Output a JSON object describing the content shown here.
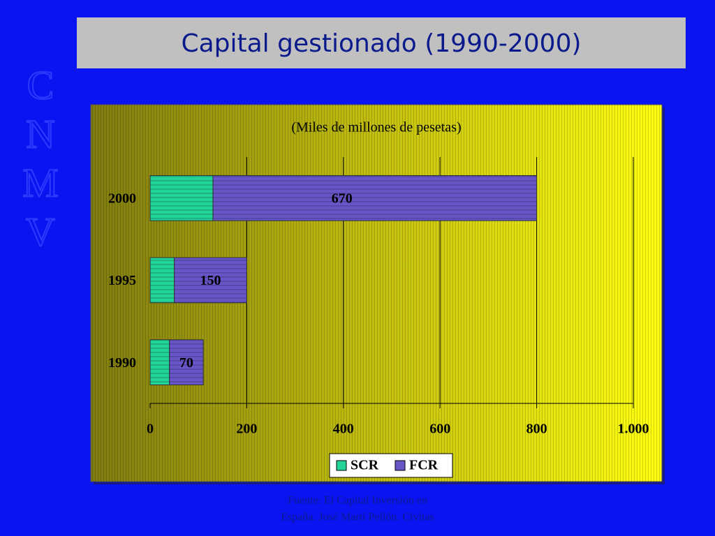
{
  "slide_title": "Capital gestionado (1990-2000)",
  "logo": [
    "C",
    "N",
    "M",
    "V"
  ],
  "source": [
    "Fuente: El Capital Inversión en",
    "España. José Martí Pellón. Civitas"
  ],
  "chart_data": {
    "type": "bar",
    "stacked": true,
    "subtitle": "(Miles de millones de pesetas)",
    "categories": [
      "1990",
      "1995",
      "2000"
    ],
    "series": [
      {
        "name": "SCR",
        "color": "#22d39a",
        "values": [
          40,
          50,
          130
        ]
      },
      {
        "name": "FCR",
        "color": "#6656c8",
        "values": [
          70,
          150,
          670
        ]
      }
    ],
    "xlim": [
      0,
      1000
    ],
    "xticks": [
      0,
      200,
      400,
      600,
      800,
      {
        "value": 1000,
        "label": "1.000"
      }
    ],
    "grid": true,
    "legend": "bottom"
  }
}
